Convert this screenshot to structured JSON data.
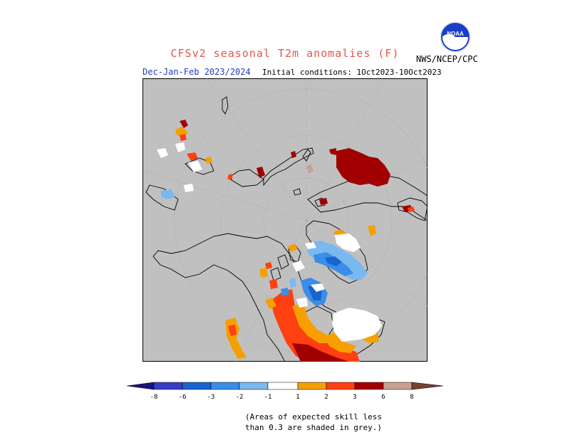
{
  "header": {
    "title": "CFSv2 seasonal T2m anomalies (F)",
    "season": "Dec-Jan-Feb 2023/2024",
    "initial_conditions": "Initial conditions: 1Oct2023-10Oct2023",
    "organization": "NWS/NCEP/CPC",
    "logo_text": "NOAA"
  },
  "map": {
    "projection": "north-polar-stereographic",
    "background_color": "#c0c0c0",
    "land_outline_color": "#000000",
    "graticule": true
  },
  "legend": {
    "ticks": [
      "-8",
      "-6",
      "-3",
      "-2",
      "-1",
      "1",
      "2",
      "3",
      "6",
      "8"
    ],
    "colors": {
      "below_minus8": "#1a1280",
      "minus8_to_minus6": "#3a3cc8",
      "minus6_to_minus3": "#1a64d0",
      "minus3_to_minus2": "#3a8ee8",
      "minus2_to_minus1": "#7ab8f0",
      "neutral": "#ffffff",
      "plus1_to_plus2": "#f5a000",
      "plus2_to_plus3": "#ff4010",
      "plus3_to_plus6": "#a00000",
      "plus6_to_plus8": "#c8a090",
      "above_plus8": "#7a4030"
    }
  },
  "footnote": {
    "line1": "(Areas of expected skill less",
    "line2": "than 0.3 are shaded in grey.)"
  }
}
